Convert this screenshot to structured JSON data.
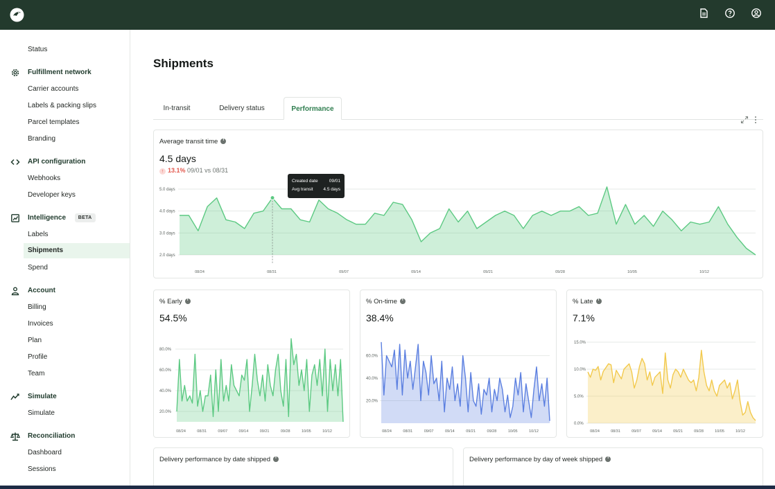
{
  "sidebar": {
    "status": "Status",
    "sections": [
      {
        "label": "Fulfillment network",
        "items": [
          "Carrier accounts",
          "Labels & packing slips",
          "Parcel templates",
          "Branding"
        ]
      },
      {
        "label": "API configuration",
        "items": [
          "Webhooks",
          "Developer keys"
        ]
      },
      {
        "label": "Intelligence",
        "badge": "BETA",
        "items": [
          "Labels",
          "Shipments",
          "Spend"
        ]
      },
      {
        "label": "Account",
        "items": [
          "Billing",
          "Invoices",
          "Plan",
          "Profile",
          "Team"
        ]
      },
      {
        "label": "Simulate",
        "items": [
          "Simulate"
        ]
      },
      {
        "label": "Reconciliation",
        "items": [
          "Dashboard",
          "Sessions"
        ]
      }
    ]
  },
  "page": {
    "title": "Shipments"
  },
  "tabs": [
    "In-transit",
    "Delivery status",
    "Performance"
  ],
  "active_tab": "Performance",
  "cards": {
    "avg_transit": {
      "title": "Average transit time",
      "value": "4.5 days",
      "delta_pct": "13.1%",
      "delta_range": "09/01 vs 08/31",
      "arrow": "↑"
    },
    "early": {
      "title": "% Early",
      "value": "54.5%"
    },
    "ontime": {
      "title": "% On-time",
      "value": "38.4%"
    },
    "late": {
      "title": "% Late",
      "value": "7.1%"
    },
    "by_date": {
      "title": "Delivery performance by date shipped"
    },
    "by_weekday": {
      "title": "Delivery performance by day of week shipped"
    }
  },
  "tooltip": {
    "k1": "Created date",
    "v1": "09/01",
    "k2": "Avg transit",
    "v2": "4.5 days"
  },
  "colors": {
    "topbar": "#233a2d",
    "green": "#5cc982",
    "blue": "#5b7fe0",
    "yellow": "#f2c94c",
    "active_tab": "#2e7d4e"
  },
  "chart_data": [
    {
      "type": "area",
      "title": "Average transit time",
      "x_tick_labels": [
        "08/24",
        "08/31",
        "09/07",
        "09/14",
        "09/21",
        "09/28",
        "10/05",
        "10/12"
      ],
      "y_tick_labels": [
        "5.0 days",
        "4.0 days",
        "3.0 days",
        "2.0 days"
      ],
      "ylim": [
        2,
        5
      ],
      "series": [
        {
          "values": [
            3.8,
            3.8,
            3.1,
            4.2,
            4.6,
            3.6,
            3.5,
            3.2,
            3.9,
            4.0,
            4.6,
            4.1,
            4.1,
            3.6,
            3.5,
            4.5,
            4.1,
            3.9,
            3.6,
            3.4,
            3.4,
            3.9,
            3.8,
            4.4,
            4.3,
            3.6,
            2.6,
            3.0,
            3.2,
            4.1,
            3.5,
            4.0,
            3.2,
            3.5,
            3.8,
            4.0,
            3.8,
            3.2,
            3.8,
            4.0,
            3.8,
            4.0,
            4.0,
            4.2,
            3.8,
            3.9,
            5.1,
            3.4,
            4.3,
            3.4,
            3.8,
            3.3,
            4.0,
            3.6,
            3.1,
            3.5,
            3.4,
            3.5,
            4.2,
            3.4,
            2.8,
            2.3,
            2.0
          ]
        }
      ],
      "grid": true
    },
    {
      "type": "area",
      "title": "% Early",
      "x_tick_labels": [
        "08/24",
        "08/31",
        "09/07",
        "09/14",
        "09/21",
        "09/28",
        "10/05",
        "10/12"
      ],
      "y_tick_labels": [
        "80.0%",
        "60.0%",
        "40.0%",
        "20.0%"
      ],
      "ylim": [
        10,
        90
      ],
      "series": [
        {
          "values": [
            20,
            70,
            30,
            45,
            30,
            35,
            28,
            75,
            25,
            40,
            20,
            35,
            35,
            55,
            15,
            60,
            20,
            70,
            30,
            45,
            30,
            65,
            45,
            40,
            35,
            55,
            50,
            70,
            20,
            45,
            75,
            50,
            35,
            55,
            30,
            65,
            45,
            35,
            60,
            75,
            40,
            25,
            70,
            15,
            90,
            65,
            75,
            45,
            60,
            40,
            70,
            20,
            55,
            65,
            45,
            70,
            35,
            80,
            20,
            70,
            40,
            65,
            35,
            70,
            10
          ]
        }
      ],
      "grid": true
    },
    {
      "type": "area",
      "title": "% On-time",
      "x_tick_labels": [
        "08/24",
        "08/31",
        "09/07",
        "09/14",
        "09/21",
        "09/28",
        "10/05",
        "10/12"
      ],
      "y_tick_labels": [
        "60.0%",
        "40.0%",
        "20.0%"
      ],
      "ylim": [
        0,
        75
      ],
      "series": [
        {
          "values": [
            72,
            25,
            60,
            55,
            50,
            65,
            30,
            70,
            25,
            65,
            40,
            55,
            30,
            50,
            70,
            20,
            55,
            45,
            25,
            60,
            35,
            40,
            20,
            55,
            10,
            40,
            30,
            50,
            20,
            35,
            15,
            60,
            40,
            10,
            45,
            20,
            15,
            35,
            8,
            30,
            25,
            40,
            10,
            30,
            20,
            40,
            30,
            10,
            25,
            5,
            15,
            40,
            25,
            45,
            10,
            35,
            20,
            5,
            30,
            50,
            20,
            35,
            15,
            40,
            2
          ]
        }
      ],
      "grid": true
    },
    {
      "type": "area",
      "title": "% Late",
      "x_tick_labels": [
        "08/24",
        "08/31",
        "09/07",
        "09/14",
        "09/21",
        "09/28",
        "10/05",
        "10/12"
      ],
      "y_tick_labels": [
        "15.0%",
        "10.0%",
        "5.0%",
        "0.0%"
      ],
      "ylim": [
        0,
        15
      ],
      "series": [
        {
          "values": [
            9.5,
            8.5,
            10.0,
            9.8,
            10.5,
            8.0,
            9.6,
            10.3,
            11.0,
            10.8,
            7.5,
            9.8,
            9.0,
            8.2,
            10.0,
            10.5,
            11.0,
            9.5,
            6.5,
            8.0,
            10.5,
            12.0,
            11.0,
            8.0,
            9.5,
            7.0,
            8.5,
            9.0,
            9.5,
            5.5,
            13.0,
            8.0,
            6.5,
            9.0,
            10.0,
            9.5,
            8.5,
            10.0,
            9.0,
            8.0,
            7.5,
            8.0,
            6.0,
            8.5,
            13.5,
            9.5,
            7.0,
            6.0,
            8.0,
            6.0,
            5.0,
            7.0,
            7.5,
            8.0,
            6.5,
            7.5,
            4.5,
            6.0,
            8.0,
            4.0,
            1.5,
            2.0,
            4.0,
            2.0,
            1.0,
            0.5
          ]
        }
      ],
      "grid": true
    }
  ]
}
